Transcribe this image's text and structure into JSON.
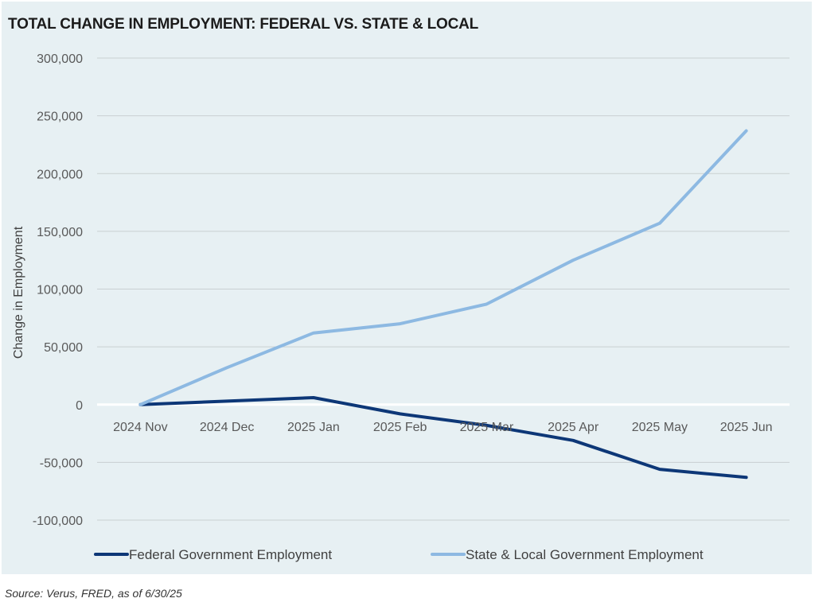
{
  "title": "TOTAL CHANGE IN EMPLOYMENT: FEDERAL VS. STATE & LOCAL",
  "source": "Source: Verus, FRED, as of 6/30/25",
  "chart_data": {
    "type": "line",
    "title": "TOTAL CHANGE IN EMPLOYMENT: FEDERAL VS. STATE & LOCAL",
    "xlabel": "",
    "ylabel": "Change in Employment",
    "categories": [
      "2024 Nov",
      "2024 Dec",
      "2025 Jan",
      "2025 Feb",
      "2025 Mar",
      "2025 Apr",
      "2025 May",
      "2025 Jun"
    ],
    "ylim": [
      -100000,
      300000
    ],
    "yticks": [
      300000,
      250000,
      200000,
      150000,
      100000,
      50000,
      0,
      -50000,
      -100000
    ],
    "ytick_labels": [
      "300,000",
      "250,000",
      "200,000",
      "150,000",
      "100,000",
      "50,000",
      "0",
      "-50,000",
      "-100,000"
    ],
    "grid": true,
    "legend_position": "bottom",
    "series": [
      {
        "name": "Federal Government Employment",
        "color": "#0d3777",
        "values": [
          0,
          3000,
          6000,
          -8000,
          -18000,
          -31000,
          -56000,
          -63000
        ]
      },
      {
        "name": "State & Local Government Employment",
        "color": "#8db9e2",
        "values": [
          0,
          32000,
          62000,
          70000,
          87000,
          125000,
          157000,
          237000
        ]
      }
    ]
  }
}
